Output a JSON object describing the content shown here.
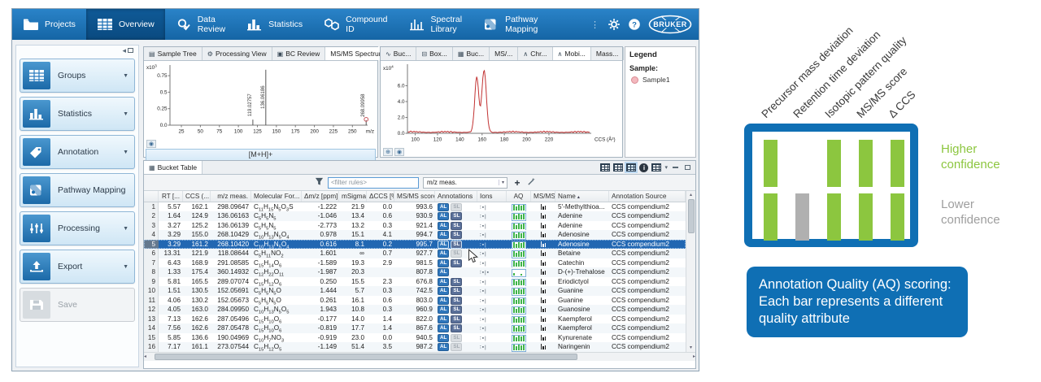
{
  "toolbar": {
    "items": [
      {
        "lines": [
          "Projects"
        ],
        "icon": "projects-folder-icon"
      },
      {
        "lines": [
          "Overview"
        ],
        "icon": "overview-table-icon",
        "active": true
      },
      {
        "lines": [
          "Data",
          "Review"
        ],
        "icon": "data-review-icon"
      },
      {
        "lines": [
          "Statistics"
        ],
        "icon": "statistics-icon"
      },
      {
        "lines": [
          "Compound",
          "ID"
        ],
        "icon": "compound-id-icon"
      },
      {
        "lines": [
          "Spectral",
          "Library"
        ],
        "icon": "spectral-library-icon"
      },
      {
        "lines": [
          "Pathway",
          "Mapping"
        ],
        "icon": "pathway-mapping-icon"
      }
    ],
    "brand": "BRUKER"
  },
  "sidebar": {
    "items": [
      {
        "label": "Groups",
        "icon": "groups-table-icon",
        "dropdown": true
      },
      {
        "label": "Statistics",
        "icon": "statistics-icon",
        "dropdown": true
      },
      {
        "label": "Annotation",
        "icon": "annotation-tag-icon",
        "dropdown": true
      },
      {
        "label": "Pathway Mapping",
        "icon": "pathway-mapping-icon",
        "dropdown": false
      },
      {
        "label": "Processing",
        "icon": "processing-sliders-icon",
        "dropdown": true
      },
      {
        "label": "Export",
        "icon": "export-icon",
        "dropdown": true
      },
      {
        "label": "Save",
        "icon": "save-icon",
        "dropdown": false,
        "disabled": true
      }
    ]
  },
  "spectrum_pane": {
    "tabs": [
      {
        "label": "Sample Tree",
        "icon": "sample-tree-icon"
      },
      {
        "label": "Processing View",
        "icon": "processing-view-icon"
      },
      {
        "label": "BC Review",
        "icon": "bc-review-icon"
      },
      {
        "label": "MS/MS Spectrum",
        "icon": null,
        "active": true,
        "closable": true
      }
    ],
    "footer_label": "[M+H]+"
  },
  "mobilogram_pane": {
    "tabs": [
      {
        "label": "Buc...",
        "icon": "curve-icon"
      },
      {
        "label": "Box...",
        "icon": "box-plot-icon"
      },
      {
        "label": "Buc...",
        "icon": "bucket-icon"
      },
      {
        "label": "MS/...",
        "icon": null
      },
      {
        "label": "Chr...",
        "icon": "chromatogram-icon"
      },
      {
        "label": "Mobi...",
        "icon": "mobilogram-icon",
        "active": true
      },
      {
        "label": "Mass...",
        "icon": null
      }
    ]
  },
  "legend_panel": {
    "title": "Legend",
    "sample_label": "Sample:",
    "sample_name": "Sample1",
    "sample_color": "#f3b8be"
  },
  "bucket_table": {
    "tab": "Bucket Table",
    "filter_placeholder": "<filter rules>",
    "filter_dropdown": "m/z meas.",
    "add_button_label": "+",
    "badges": {
      "al": "AL",
      "sl": "SL"
    },
    "ions_default": "∶▪|",
    "sort_column": "Name",
    "columns": [
      "",
      "RT [...",
      "CCS (...",
      "m/z meas.",
      "Molecular For...",
      "Δm/z [ppm]",
      "mSigma",
      "ΔCCS [%]",
      "MS/MS score",
      "Annotations",
      "Ions",
      "AQ",
      "MS/MS",
      "Name",
      "Annotation Source"
    ],
    "rows": [
      {
        "n": "1",
        "rt": "5.57",
        "ccs": "162.1",
        "mz": "298.09647",
        "formula": "C11H15N5O3S",
        "dmz": "-1.222",
        "msigma": "21.9",
        "dccs": "0.0",
        "score": "993.6",
        "sl": "off",
        "name": "5'-Methylthioa...",
        "src": "CCS compendium2"
      },
      {
        "n": "2",
        "rt": "1.64",
        "ccs": "124.9",
        "mz": "136.06163",
        "formula": "C5H5N5",
        "dmz": "-1.046",
        "msigma": "13.4",
        "dccs": "0.6",
        "score": "930.9",
        "sl": "on",
        "name": "Adenine",
        "src": "CCS compendium2"
      },
      {
        "n": "3",
        "rt": "3.27",
        "ccs": "125.2",
        "mz": "136.06139",
        "formula": "C5H5N5",
        "dmz": "-2.773",
        "msigma": "13.2",
        "dccs": "0.3",
        "score": "921.4",
        "sl": "on",
        "name": "Adenine",
        "src": "CCS compendium2"
      },
      {
        "n": "4",
        "rt": "3.29",
        "ccs": "155.0",
        "mz": "268.10429",
        "formula": "C10H13N5O4",
        "dmz": "0.978",
        "msigma": "15.1",
        "dccs": "4.1",
        "score": "994.7",
        "sl": "on",
        "name": "Adenosine",
        "src": "CCS compendium2"
      },
      {
        "n": "5",
        "rt": "3.29",
        "ccs": "161.2",
        "mz": "268.10420",
        "formula": "C10H13N5O4",
        "dmz": "0.616",
        "msigma": "8.1",
        "dccs": "0.2",
        "score": "995.7",
        "sl": "on",
        "name": "Adenosine",
        "src": "CCS compendium2",
        "selected": true
      },
      {
        "n": "6",
        "rt": "13.31",
        "ccs": "121.9",
        "mz": "118.08644",
        "formula": "C5H11NO2",
        "dmz": "1.601",
        "msigma": "∞",
        "dccs": "0.7",
        "score": "927.7",
        "sl": "off",
        "name": "Betaine",
        "src": "CCS compendium2"
      },
      {
        "n": "7",
        "rt": "6.43",
        "ccs": "168.9",
        "mz": "291.08585",
        "formula": "C15H14O6",
        "dmz": "-1.589",
        "msigma": "19.3",
        "dccs": "2.9",
        "score": "981.5",
        "sl": "on",
        "name": "Catechin",
        "src": "CCS compendium2"
      },
      {
        "n": "8",
        "rt": "1.33",
        "ccs": "175.4",
        "mz": "360.14932",
        "formula": "C12H22O11",
        "dmz": "-1.987",
        "msigma": "20.3",
        "dccs": "",
        "score": "807.8",
        "sl": "none",
        "name": "D-(+)-Trehalose",
        "src": "CCS compendium2",
        "aq": "sparse",
        "ions": "∶▪|▪"
      },
      {
        "n": "9",
        "rt": "5.81",
        "ccs": "165.5",
        "mz": "289.07074",
        "formula": "C15H12O6",
        "dmz": "0.250",
        "msigma": "15.5",
        "dccs": "2.3",
        "score": "676.8",
        "sl": "on",
        "name": "Eriodictyol",
        "src": "CCS compendium2"
      },
      {
        "n": "10",
        "rt": "1.51",
        "ccs": "130.5",
        "mz": "152.05691",
        "formula": "C5H5N5O",
        "dmz": "1.444",
        "msigma": "5.7",
        "dccs": "0.3",
        "score": "742.5",
        "sl": "on",
        "name": "Guanine",
        "src": "CCS compendium2"
      },
      {
        "n": "11",
        "rt": "4.06",
        "ccs": "130.2",
        "mz": "152.05673",
        "formula": "C5H5N5O",
        "dmz": "0.261",
        "msigma": "16.1",
        "dccs": "0.6",
        "score": "803.0",
        "sl": "on",
        "name": "Guanine",
        "src": "CCS compendium2"
      },
      {
        "n": "12",
        "rt": "4.05",
        "ccs": "163.0",
        "mz": "284.09950",
        "formula": "C10H13N5O5",
        "dmz": "1.943",
        "msigma": "10.8",
        "dccs": "0.3",
        "score": "960.9",
        "sl": "on",
        "name": "Guanosine",
        "src": "CCS compendium2"
      },
      {
        "n": "13",
        "rt": "7.13",
        "ccs": "162.6",
        "mz": "287.05496",
        "formula": "C15H10O6",
        "dmz": "-0.177",
        "msigma": "14.0",
        "dccs": "1.4",
        "score": "822.0",
        "sl": "on",
        "name": "Kaempferol",
        "src": "CCS compendium2"
      },
      {
        "n": "14",
        "rt": "7.56",
        "ccs": "162.6",
        "mz": "287.05478",
        "formula": "C15H10O6",
        "dmz": "-0.819",
        "msigma": "17.7",
        "dccs": "1.4",
        "score": "867.6",
        "sl": "on",
        "name": "Kaempferol",
        "src": "CCS compendium2"
      },
      {
        "n": "15",
        "rt": "5.85",
        "ccs": "136.6",
        "mz": "190.04969",
        "formula": "C10H7NO3",
        "dmz": "-0.919",
        "msigma": "23.0",
        "dccs": "0.0",
        "score": "940.5",
        "sl": "off",
        "name": "Kynurenate",
        "src": "CCS compendium2"
      },
      {
        "n": "16",
        "rt": "7.17",
        "ccs": "161.1",
        "mz": "273.07544",
        "formula": "C15H12O5",
        "dmz": "-1.149",
        "msigma": "51.4",
        "dccs": "3.5",
        "score": "987.2",
        "sl": "off",
        "name": "Naringenin",
        "src": "CCS compendium2"
      }
    ]
  },
  "chart_data": [
    {
      "type": "bar",
      "title": "MS/MS Spectrum",
      "xlabel": "m/z",
      "ylabel": "x10^3",
      "xlim": [
        10,
        270
      ],
      "ylim": [
        0,
        0.85
      ],
      "xticks": [
        25,
        50,
        75,
        100,
        125,
        150,
        175,
        200,
        225,
        250
      ],
      "yticks": [
        "0.0",
        "0.25",
        "0.5",
        "0.75"
      ],
      "peaks": [
        {
          "mz": 119.02757,
          "rel": 0.1,
          "label": "119.02757"
        },
        {
          "mz": 136.06186,
          "rel": 1.0,
          "label": "136.06186"
        },
        {
          "mz": 268.09958,
          "rel": 0.09,
          "label": "268.09958",
          "marker": "red-circle"
        }
      ]
    },
    {
      "type": "line",
      "title": "Mobilogram",
      "xlabel": "CCS (Å²)",
      "ylabel": "x10^4",
      "xlim": [
        93,
        258
      ],
      "ylim": [
        0,
        8.3
      ],
      "xticks": [
        100,
        120,
        140,
        160,
        180,
        200,
        220
      ],
      "yticks": [
        "0.0",
        "2.0",
        "4.0",
        "6.0"
      ],
      "series_color": "#c23232",
      "series_name": "Sample1",
      "baseline_noise": 0.15,
      "peaks": [
        {
          "ccs": 155.2,
          "height": 6.9,
          "sigma": 1.8
        },
        {
          "ccs": 161.8,
          "height": 7.8,
          "sigma": 2.0
        }
      ]
    }
  ],
  "infographic": {
    "attribute_labels": [
      "Precursor mass deviation",
      "Retention time deviation",
      "Isotopic pattern quality",
      "MS/MS score",
      "Δ CCS"
    ],
    "bar_rows": [
      [
        "green",
        "none",
        "green",
        "green",
        "green"
      ],
      [
        "green",
        "gray",
        "green",
        "green",
        "green"
      ]
    ],
    "higher_label": "Higher confidence",
    "lower_label": "Lower confidence",
    "caption": "Annotation Quality (AQ) scoring: Each bar represents a different quality attribute",
    "colors": {
      "green": "#8cc63f",
      "gray": "#b0b0b0",
      "blue": "#0f6fb4"
    }
  }
}
